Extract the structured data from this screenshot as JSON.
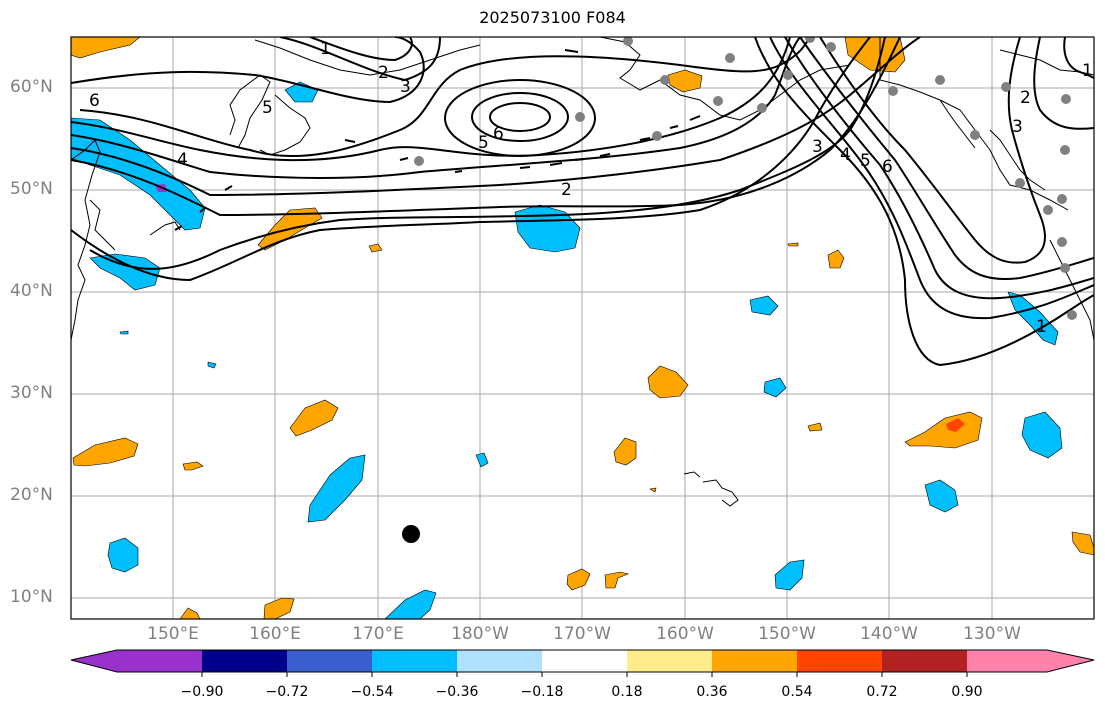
{
  "title": "2025073100 F084",
  "map": {
    "lat_labels": [
      "60°N",
      "50°N",
      "40°N",
      "30°N",
      "20°N",
      "10°N"
    ],
    "lon_labels": [
      "150°E",
      "160°E",
      "170°E",
      "180°W",
      "170°W",
      "160°W",
      "150°W",
      "140°W",
      "130°W"
    ],
    "contour_labels": [
      "1",
      "2",
      "3",
      "6",
      "5",
      "6",
      "4",
      "5",
      "2",
      "3",
      "4",
      "5",
      "6",
      "3",
      "2",
      "1",
      "1"
    ]
  },
  "colorbar": {
    "tick_labels": [
      "−0.90",
      "−0.72",
      "−0.54",
      "−0.36",
      "−0.18",
      "0.18",
      "0.36",
      "0.54",
      "0.72",
      "0.90"
    ],
    "colors": [
      "#9932cc",
      "#00008b",
      "#3a5fcd",
      "#00bfff",
      "#b0e2ff",
      "#ffffff",
      "#ffec8b",
      "#ffa500",
      "#ff4500",
      "#b22222",
      "#ff82ab"
    ]
  }
}
